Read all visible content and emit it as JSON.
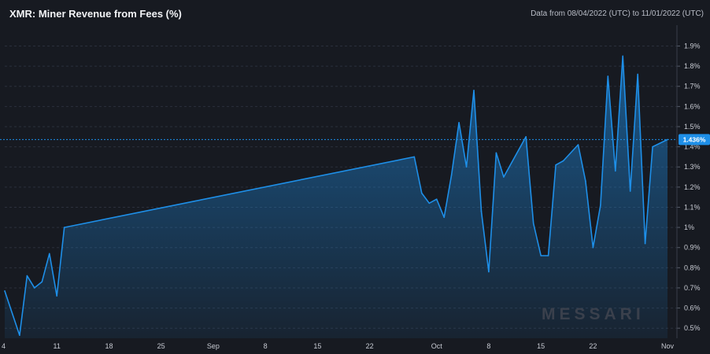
{
  "header": {
    "title": "XMR: Miner Revenue from Fees (%)",
    "date_range": "Data from 08/04/2022 (UTC) to 11/01/2022 (UTC)"
  },
  "watermark": "MESSARI",
  "colors": {
    "background": "#171a21",
    "line": "#1e8fe8",
    "current_label_bg": "#1e8fe8",
    "grid": "#2b303c"
  },
  "chart_data": {
    "type": "area",
    "title": "XMR: Miner Revenue from Fees (%)",
    "xlabel": "",
    "ylabel": "",
    "ylim": [
      0.45,
      1.98
    ],
    "y_ticks": [
      {
        "value": 0.5,
        "label": "0.5%"
      },
      {
        "value": 0.6,
        "label": "0.6%"
      },
      {
        "value": 0.7,
        "label": "0.7%"
      },
      {
        "value": 0.8,
        "label": "0.8%"
      },
      {
        "value": 0.9,
        "label": "0.9%"
      },
      {
        "value": 1.0,
        "label": "1%"
      },
      {
        "value": 1.1,
        "label": "1.1%"
      },
      {
        "value": 1.2,
        "label": "1.2%"
      },
      {
        "value": 1.3,
        "label": "1.3%"
      },
      {
        "value": 1.4,
        "label": "1.4%"
      },
      {
        "value": 1.5,
        "label": "1.5%"
      },
      {
        "value": 1.6,
        "label": "1.6%"
      },
      {
        "value": 1.7,
        "label": "1.7%"
      },
      {
        "value": 1.8,
        "label": "1.8%"
      },
      {
        "value": 1.9,
        "label": "1.9%"
      }
    ],
    "x_ticks": [
      {
        "date": "2022-08-04",
        "label": "4"
      },
      {
        "date": "2022-08-11",
        "label": "11"
      },
      {
        "date": "2022-08-18",
        "label": "18"
      },
      {
        "date": "2022-08-25",
        "label": "25"
      },
      {
        "date": "2022-09-01",
        "label": "Sep"
      },
      {
        "date": "2022-09-08",
        "label": "8"
      },
      {
        "date": "2022-09-15",
        "label": "15"
      },
      {
        "date": "2022-09-22",
        "label": "22"
      },
      {
        "date": "2022-10-01",
        "label": "Oct"
      },
      {
        "date": "2022-10-08",
        "label": "8"
      },
      {
        "date": "2022-10-15",
        "label": "15"
      },
      {
        "date": "2022-10-22",
        "label": "22"
      },
      {
        "date": "2022-11-01",
        "label": "Nov"
      }
    ],
    "x_range": [
      "2022-08-04",
      "2022-11-01"
    ],
    "current_value": {
      "value": 1.436,
      "label": "1.436%"
    },
    "series": [
      {
        "color": "#1e8fe8",
        "points": [
          {
            "date": "2022-08-04",
            "value": 0.685
          },
          {
            "date": "2022-08-06",
            "value": 0.465
          },
          {
            "date": "2022-08-07",
            "value": 0.76
          },
          {
            "date": "2022-08-08",
            "value": 0.7
          },
          {
            "date": "2022-08-09",
            "value": 0.73
          },
          {
            "date": "2022-08-10",
            "value": 0.87
          },
          {
            "date": "2022-08-11",
            "value": 0.66
          },
          {
            "date": "2022-08-12",
            "value": 1.0
          },
          {
            "date": "2022-09-28",
            "value": 1.35
          },
          {
            "date": "2022-09-29",
            "value": 1.17
          },
          {
            "date": "2022-09-30",
            "value": 1.12
          },
          {
            "date": "2022-10-01",
            "value": 1.14
          },
          {
            "date": "2022-10-02",
            "value": 1.05
          },
          {
            "date": "2022-10-03",
            "value": 1.26
          },
          {
            "date": "2022-10-04",
            "value": 1.52
          },
          {
            "date": "2022-10-05",
            "value": 1.3
          },
          {
            "date": "2022-10-06",
            "value": 1.68
          },
          {
            "date": "2022-10-07",
            "value": 1.08
          },
          {
            "date": "2022-10-08",
            "value": 0.78
          },
          {
            "date": "2022-10-09",
            "value": 1.37
          },
          {
            "date": "2022-10-10",
            "value": 1.25
          },
          {
            "date": "2022-10-13",
            "value": 1.45
          },
          {
            "date": "2022-10-14",
            "value": 1.02
          },
          {
            "date": "2022-10-15",
            "value": 0.86
          },
          {
            "date": "2022-10-16",
            "value": 0.86
          },
          {
            "date": "2022-10-17",
            "value": 1.31
          },
          {
            "date": "2022-10-18",
            "value": 1.33
          },
          {
            "date": "2022-10-20",
            "value": 1.41
          },
          {
            "date": "2022-10-21",
            "value": 1.23
          },
          {
            "date": "2022-10-22",
            "value": 0.9
          },
          {
            "date": "2022-10-23",
            "value": 1.11
          },
          {
            "date": "2022-10-24",
            "value": 1.75
          },
          {
            "date": "2022-10-25",
            "value": 1.28
          },
          {
            "date": "2022-10-26",
            "value": 1.85
          },
          {
            "date": "2022-10-27",
            "value": 1.18
          },
          {
            "date": "2022-10-28",
            "value": 1.76
          },
          {
            "date": "2022-10-29",
            "value": 0.92
          },
          {
            "date": "2022-10-30",
            "value": 1.4
          },
          {
            "date": "2022-11-01",
            "value": 1.436
          }
        ]
      }
    ]
  }
}
